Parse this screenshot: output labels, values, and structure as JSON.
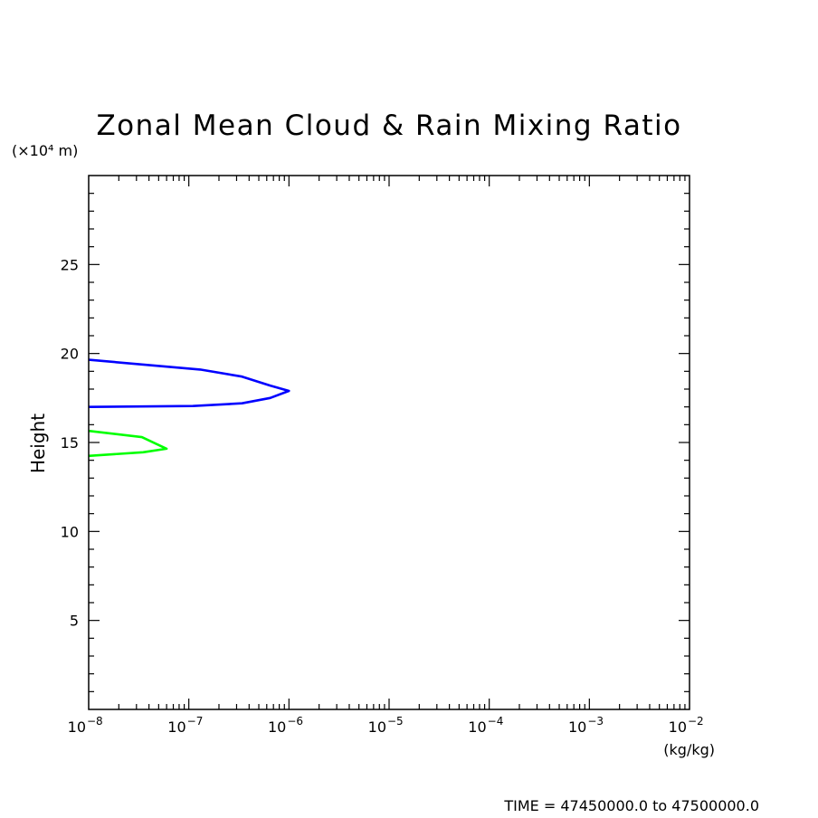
{
  "chart_data": {
    "type": "line",
    "title": "Zonal Mean Cloud & Rain Mixing Ratio",
    "xlabel": "(kg/kg)",
    "ylabel": "Height",
    "y_unit": "(×10⁴ m)",
    "x_scale": "log",
    "xlim": [
      1e-08,
      0.01
    ],
    "ylim": [
      0,
      30
    ],
    "x_tick_labels": [
      {
        "value": 1e-08,
        "base": "10",
        "exp": "−8"
      },
      {
        "value": 1e-07,
        "base": "10",
        "exp": "−7"
      },
      {
        "value": 1e-06,
        "base": "10",
        "exp": "−6"
      },
      {
        "value": 1e-05,
        "base": "10",
        "exp": "−5"
      },
      {
        "value": 0.0001,
        "base": "10",
        "exp": "−4"
      },
      {
        "value": 0.001,
        "base": "10",
        "exp": "−3"
      },
      {
        "value": 0.01,
        "base": "10",
        "exp": "−2"
      }
    ],
    "y_ticks": [
      5,
      10,
      15,
      20,
      25
    ],
    "grid": false,
    "series": [
      {
        "color": "#0000ff",
        "x": [
          1e-08,
          1.3e-07,
          3.4e-07,
          6.5e-07,
          1e-06,
          6.5e-07,
          3.4e-07,
          1.1e-07,
          1e-08
        ],
        "y": [
          19.65,
          19.1,
          18.7,
          18.2,
          17.9,
          17.5,
          17.2,
          17.05,
          17.0
        ]
      },
      {
        "color": "#00ff00",
        "x": [
          1e-08,
          3.4e-08,
          6e-08,
          3.5e-08,
          1e-08
        ],
        "y": [
          15.65,
          15.3,
          14.65,
          14.45,
          14.25
        ]
      }
    ]
  },
  "footer": {
    "time_text": "TIME = 47450000.0 to 47500000.0"
  }
}
